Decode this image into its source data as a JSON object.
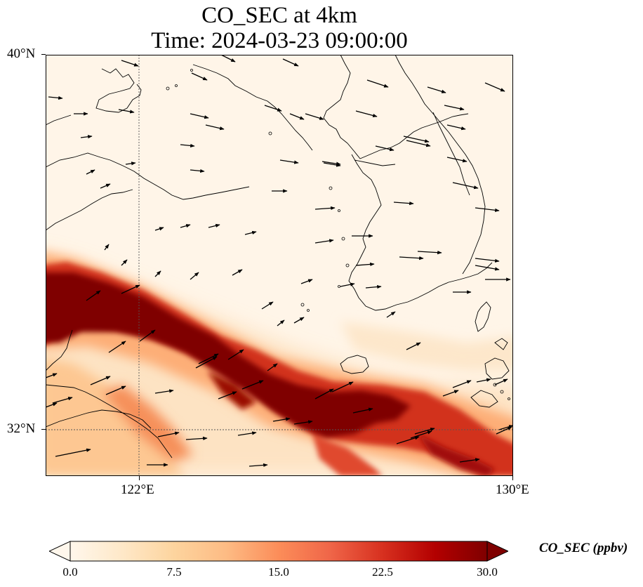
{
  "title": {
    "line1": "CO_SEC at 4km",
    "line2": "Time: 2024-03-23 09:00:00"
  },
  "axes": {
    "lat_labels": [
      "40°N",
      "32°N"
    ],
    "lon_labels": [
      "122°E",
      "130°E"
    ],
    "lon_range": [
      120,
      130
    ],
    "lat_range": [
      31,
      40
    ],
    "gridlines": {
      "lon": 122,
      "lat": 32,
      "style": "dotted"
    }
  },
  "colorbar": {
    "label": "CO_SEC (ppbv)",
    "ticks": [
      "0.0",
      "7.5",
      "15.0",
      "22.5",
      "30.0"
    ],
    "range": [
      0,
      30
    ],
    "extend": "both",
    "colormap": "OrRd",
    "colors": [
      "#fff7ec",
      "#fee8c8",
      "#fdd49e",
      "#fdbb84",
      "#fc8d59",
      "#ef6548",
      "#d7301f",
      "#b30000",
      "#7f0000"
    ]
  },
  "plume": {
    "description_colors": {
      "core": "#7f0000",
      "high": "#c7221a",
      "mid": "#f4864f",
      "low": "#fdc48d",
      "background": "#fff5e8"
    }
  },
  "wind_vectors": {
    "color": "#000000"
  }
}
